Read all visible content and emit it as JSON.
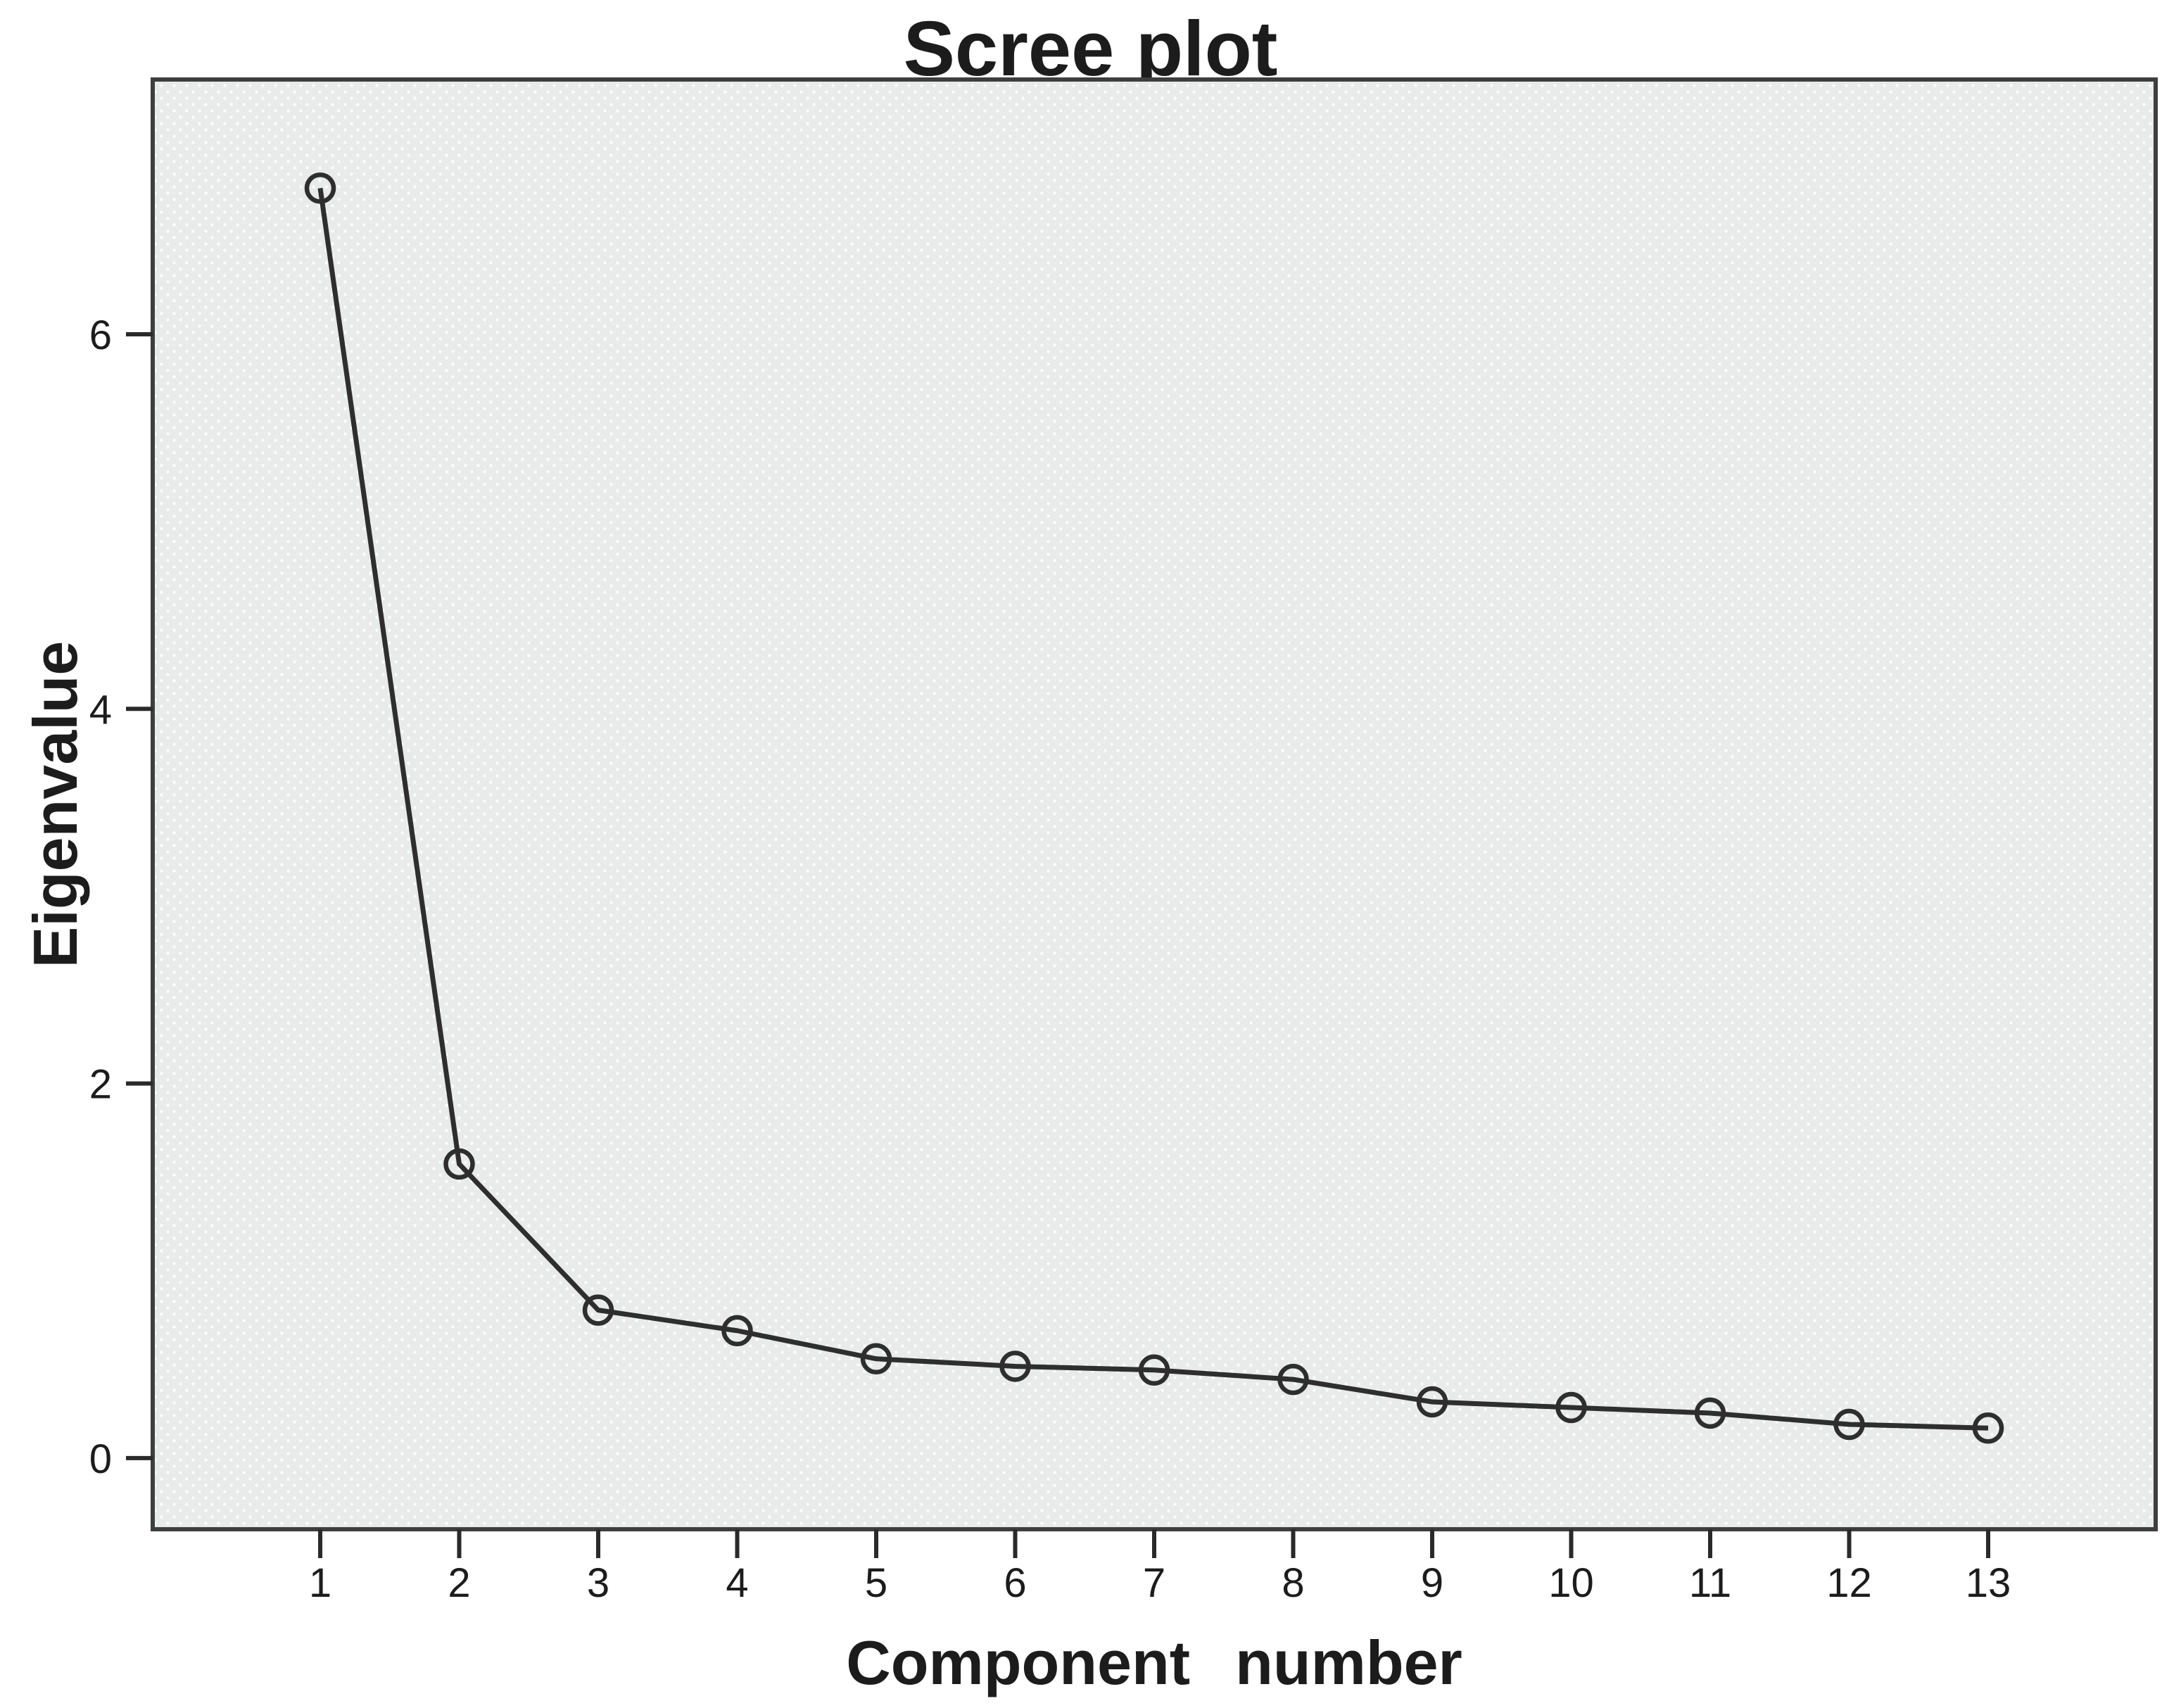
{
  "chart_data": {
    "type": "line",
    "title": "Scree plot",
    "xlabel": "Component number",
    "ylabel": "Eigenvalue",
    "series_name": "Eigenvalue",
    "categories": [
      "1",
      "2",
      "3",
      "4",
      "5",
      "6",
      "7",
      "8",
      "9",
      "10",
      "11",
      "12",
      "13"
    ],
    "values": [
      6.78,
      1.57,
      0.79,
      0.68,
      0.53,
      0.49,
      0.47,
      0.42,
      0.3,
      0.27,
      0.24,
      0.18,
      0.16
    ],
    "y_ticks": [
      0,
      2,
      4,
      6
    ],
    "ylim": [
      -0.38,
      7.36
    ],
    "marker": "open-circle",
    "grid": false,
    "legend": "none",
    "line_color": "#2e2e2e",
    "marker_color": "#2e2e2e",
    "axis_color": "#3e3e3e",
    "tick_color": "#2a2a2a",
    "text_color": "#1c1c1c",
    "plot_bg_color": "#e9eaea",
    "dot_pattern_color": "#f8fdfc",
    "outer_bg_color": "#ffffff"
  }
}
